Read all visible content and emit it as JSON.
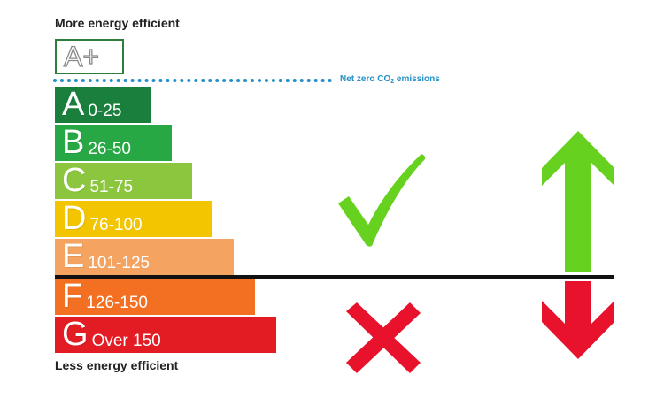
{
  "header": {
    "top_label": "More energy efficient",
    "bottom_label": "Less energy efficient"
  },
  "aplus": {
    "label": "A+",
    "border_color": "#2f7d3b"
  },
  "net_zero": {
    "label_prefix": "Net zero CO",
    "label_sub": "2",
    "label_suffix": " emissions",
    "color": "#2390c9"
  },
  "bands": [
    {
      "letter": "A",
      "range": "0-25",
      "color": "#1a7f3c"
    },
    {
      "letter": "B",
      "range": "26-50",
      "color": "#28a745"
    },
    {
      "letter": "C",
      "range": "51-75",
      "color": "#8cc63f"
    },
    {
      "letter": "D",
      "range": "76-100",
      "color": "#f2c500"
    },
    {
      "letter": "E",
      "range": "101-125",
      "color": "#f4a460"
    },
    {
      "letter": "F",
      "range": "126-150",
      "color": "#f36f21"
    },
    {
      "letter": "G",
      "range": "Over 150",
      "color": "#e31b23"
    }
  ],
  "symbols": {
    "check_color": "#66d11e",
    "cross_color": "#e8122c",
    "up_arrow_color": "#66d11e",
    "down_arrow_color": "#e8122c"
  }
}
